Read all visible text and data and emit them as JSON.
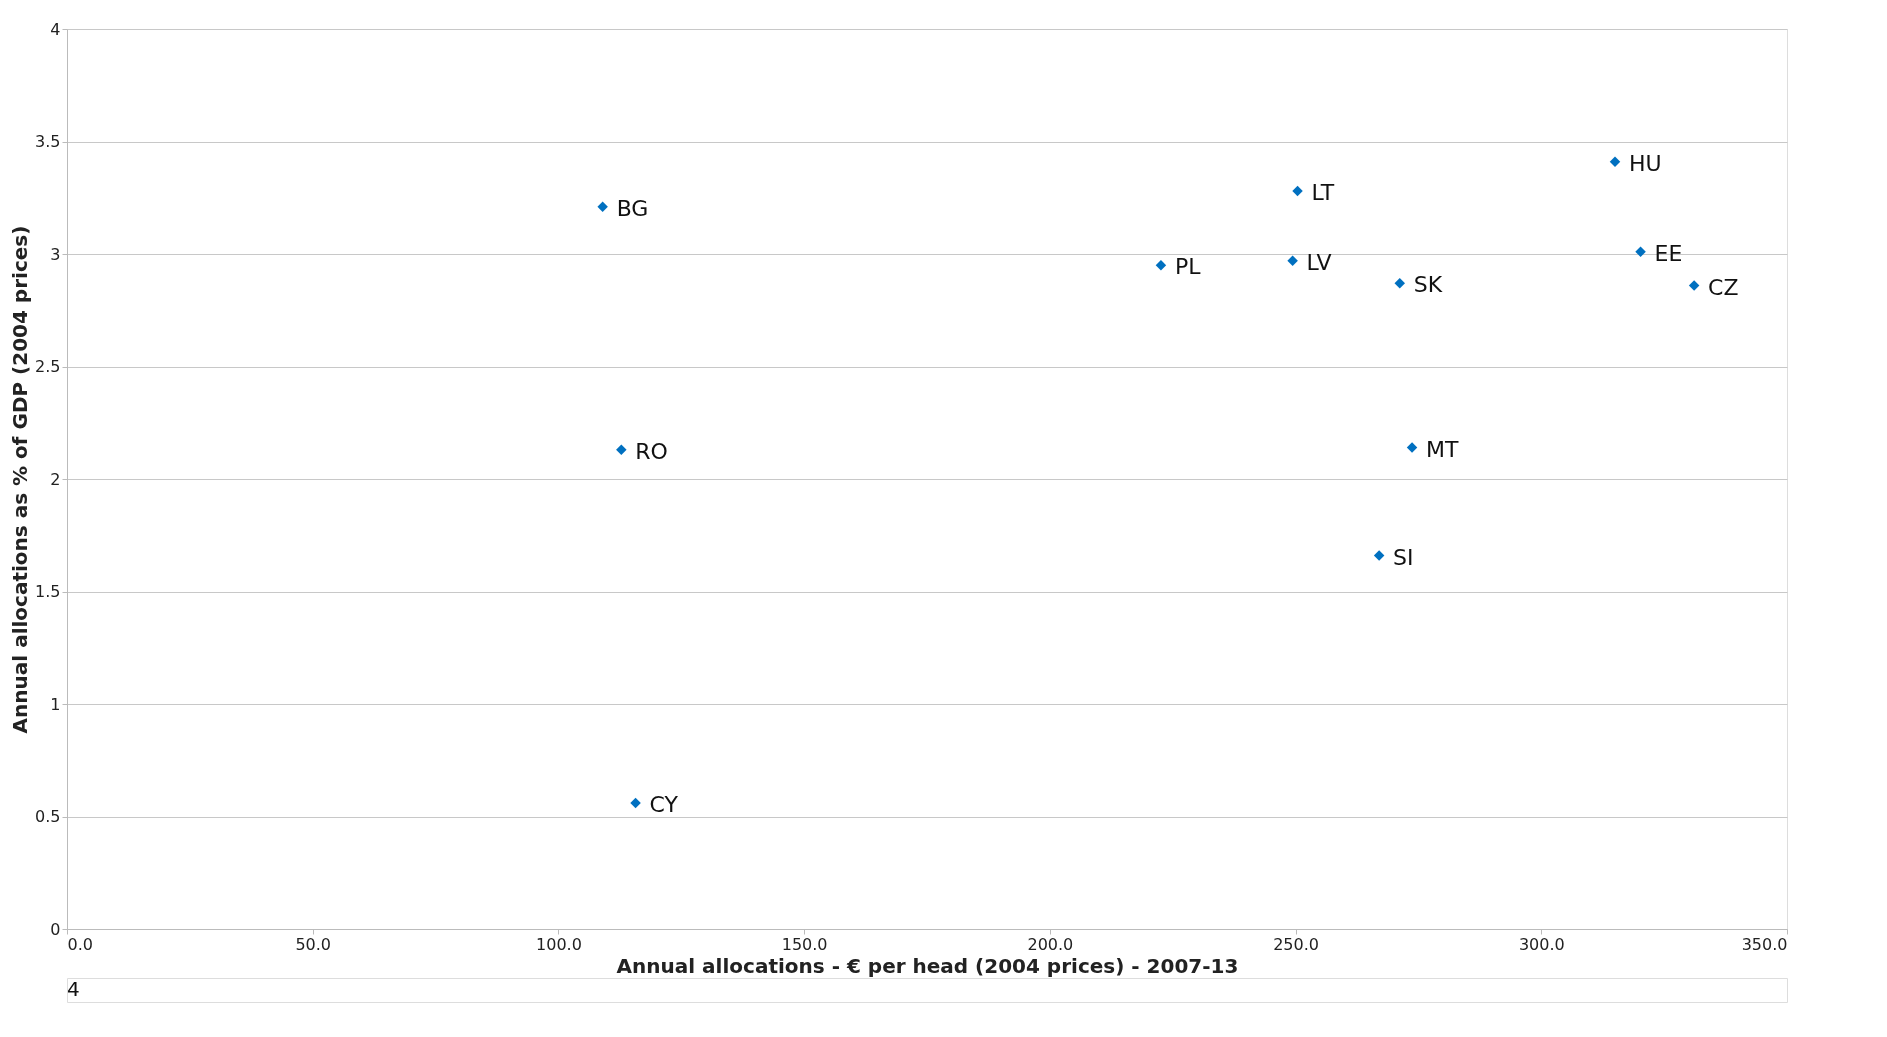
{
  "chart_data": {
    "type": "scatter",
    "xlabel": "Annual allocations - € per head (2004 prices) - 2007-13",
    "ylabel": "Annual allocations as % of GDP (2004 prices)",
    "x": [
      109.0,
      112.8,
      115.7,
      222.6,
      249.4,
      250.4,
      271.2,
      273.7,
      267.0,
      315.0,
      320.2,
      331.1
    ],
    "series": [
      {
        "color": "#0070c0",
        "values": [
          3.21,
          2.13,
          0.56,
          2.95,
          2.97,
          3.28,
          2.87,
          2.14,
          1.66,
          3.41,
          3.01,
          2.86
        ]
      }
    ],
    "marker": "diamond",
    "xlim": [
      0,
      350
    ],
    "ylim": [
      0,
      4
    ],
    "xticks": [
      {
        "value": 0,
        "label": "0.0"
      },
      {
        "value": 50,
        "label": "50.0"
      },
      {
        "value": 100,
        "label": "100.0"
      },
      {
        "value": 150,
        "label": "150.0"
      },
      {
        "value": 200,
        "label": "200.0"
      },
      {
        "value": 250,
        "label": "250.0"
      },
      {
        "value": 300,
        "label": "300.0"
      },
      {
        "value": 350,
        "label": "350.0"
      }
    ],
    "yticks": [
      0,
      0.5,
      1,
      1.5,
      2,
      2.5,
      3,
      3.5,
      4
    ],
    "grid": "y",
    "annotations": [
      {
        "text": "BG",
        "x": 109.0,
        "y": 3.21
      },
      {
        "text": "RO",
        "x": 112.8,
        "y": 2.13
      },
      {
        "text": "CY",
        "x": 115.7,
        "y": 0.56
      },
      {
        "text": "PL",
        "x": 222.6,
        "y": 2.95
      },
      {
        "text": "LV",
        "x": 249.4,
        "y": 2.97
      },
      {
        "text": "LT",
        "x": 250.4,
        "y": 3.28
      },
      {
        "text": "SK",
        "x": 271.2,
        "y": 2.87
      },
      {
        "text": "MT",
        "x": 273.7,
        "y": 2.14
      },
      {
        "text": "SI",
        "x": 267.0,
        "y": 1.66
      },
      {
        "text": "HU",
        "x": 315.0,
        "y": 3.41
      },
      {
        "text": "EE",
        "x": 320.2,
        "y": 3.01
      },
      {
        "text": "CZ",
        "x": 331.1,
        "y": 2.86
      },
      "4"
    ]
  }
}
